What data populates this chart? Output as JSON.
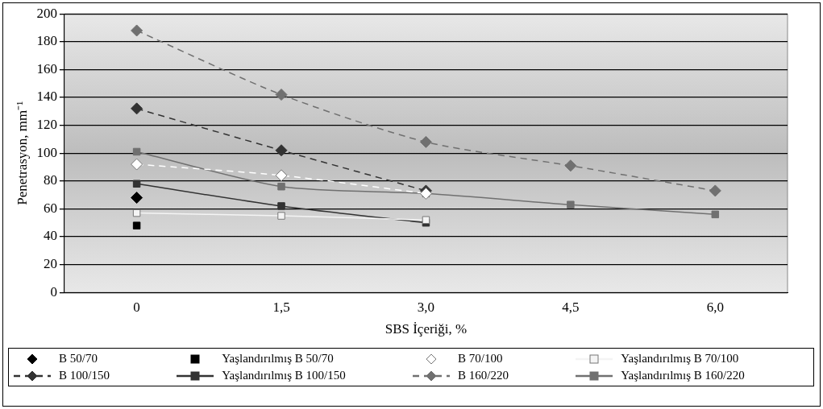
{
  "chart_data": {
    "type": "line",
    "xlabel": "SBS İçeriği, %",
    "ylabel": "Penetrasyon, mm⁻¹",
    "categories": [
      "0",
      "1,5",
      "3,0",
      "4,5",
      "6,0"
    ],
    "ylim": [
      0,
      200
    ],
    "yticks": [
      0,
      20,
      40,
      60,
      80,
      100,
      120,
      140,
      160,
      180,
      200
    ],
    "grid": "y",
    "legend": "bottom",
    "series": [
      {
        "name": "B 50/70",
        "color": "#000000",
        "marker": "diamond",
        "line_style": "none",
        "values": [
          68,
          null,
          null,
          null,
          null
        ]
      },
      {
        "name": "Yaşlandırılmış B 50/70",
        "color": "#000000",
        "marker": "square",
        "line_style": "none",
        "values": [
          48,
          null,
          null,
          null,
          null
        ]
      },
      {
        "name": "B 70/100",
        "color": "#ffffff",
        "marker": "diamond",
        "line_style": "dashed",
        "values": [
          92,
          84,
          71,
          null,
          null
        ]
      },
      {
        "name": "Yaşlandırılmış B 70/100",
        "color": "#f4f4f4",
        "marker": "square",
        "line_style": "solid",
        "values": [
          57,
          55,
          52,
          null,
          null
        ]
      },
      {
        "name": "B 100/150",
        "color": "#333333",
        "marker": "diamond",
        "line_style": "dashed",
        "values": [
          132,
          102,
          73,
          null,
          null
        ]
      },
      {
        "name": "Yaşlandırılmış B 100/150",
        "color": "#333333",
        "marker": "square",
        "line_style": "solid",
        "values": [
          78,
          62,
          50,
          null,
          null
        ]
      },
      {
        "name": "B 160/220",
        "color": "#707070",
        "marker": "diamond",
        "line_style": "dashed",
        "values": [
          188,
          142,
          108,
          91,
          73
        ]
      },
      {
        "name": "Yaşlandırılmış B 160/220",
        "color": "#707070",
        "marker": "square",
        "line_style": "solid",
        "values": [
          101,
          76,
          71,
          63,
          56
        ]
      }
    ]
  }
}
